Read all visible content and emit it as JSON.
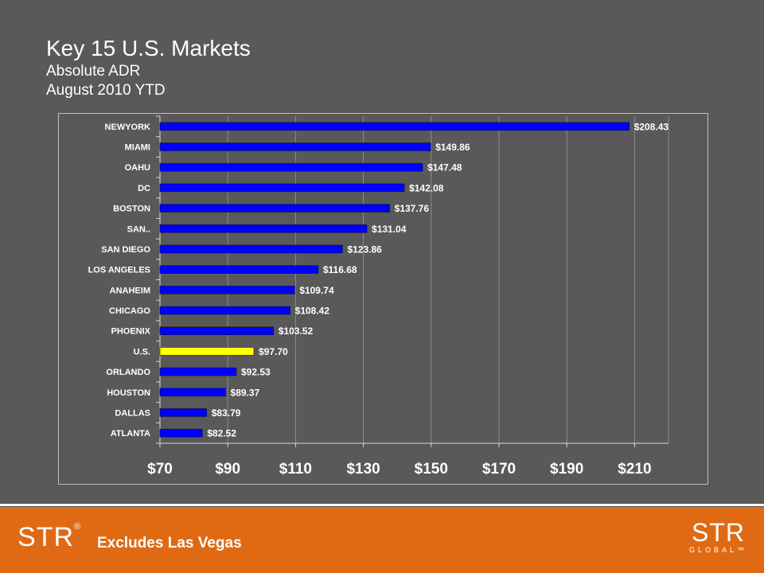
{
  "header": {
    "title": "Key 15 U.S. Markets",
    "subtitle": "Absolute ADR",
    "period": "August 2010 YTD"
  },
  "footer": {
    "logo_left": "STR",
    "logo_left_mark": "®",
    "note": "Excludes Las Vegas",
    "logo_right_main": "STR",
    "logo_right_sub": "GLOBAL™"
  },
  "colors": {
    "background": "#595959",
    "bar": "#0000ff",
    "highlight_bar": "#ffff00",
    "footer": "#df6a13"
  },
  "chart_data": {
    "type": "bar",
    "orientation": "horizontal",
    "categories": [
      "NEWYORK",
      "MIAMI",
      "OAHU",
      "DC",
      "BOSTON",
      "SAN..",
      "SAN DIEGO",
      "LOS ANGELES",
      "ANAHEIM",
      "CHICAGO",
      "PHOENIX",
      "U.S.",
      "ORLANDO",
      "HOUSTON",
      "DALLAS",
      "ATLANTA"
    ],
    "values": [
      208.43,
      149.86,
      147.48,
      142.08,
      137.76,
      131.04,
      123.86,
      116.68,
      109.74,
      108.42,
      103.52,
      97.7,
      92.53,
      89.37,
      83.79,
      82.52
    ],
    "value_labels": [
      "$208.43",
      "$149.86",
      "$147.48",
      "$142.08",
      "$137.76",
      "$131.04",
      "$123.86",
      "$116.68",
      "$109.74",
      "$108.42",
      "$103.52",
      "$97.70",
      "$92.53",
      "$89.37",
      "$83.79",
      "$82.52"
    ],
    "highlight_category": "U.S.",
    "xlim": [
      70,
      220
    ],
    "x_ticks": [
      70,
      90,
      110,
      130,
      150,
      170,
      190,
      210
    ],
    "x_tick_labels": [
      "$70",
      "$90",
      "$110",
      "$130",
      "$150",
      "$170",
      "$190",
      "$210"
    ],
    "grid": true
  }
}
